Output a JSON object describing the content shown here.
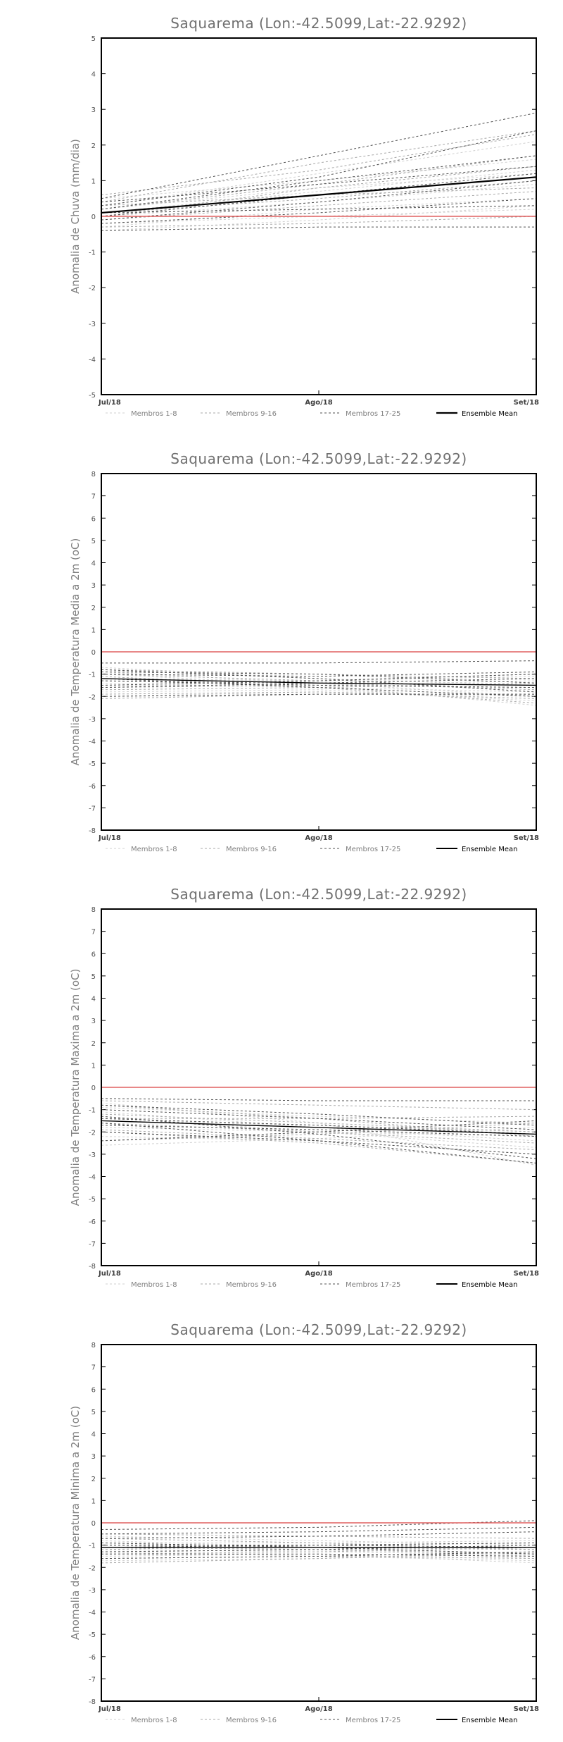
{
  "legend": {
    "items": [
      {
        "label": "Membros 1-8",
        "color": "#d0d0d0",
        "dash": "3,3",
        "width": 1
      },
      {
        "label": "Membros 9-16",
        "color": "#a8a8a8",
        "dash": "3,3",
        "width": 1
      },
      {
        "label": "Membros 17-25",
        "color": "#505050",
        "dash": "3,3",
        "width": 1
      },
      {
        "label": "Ensemble Mean",
        "color": "#000000",
        "dash": "",
        "width": 2
      }
    ]
  },
  "zero_line_color": "#e06060",
  "chart_data": [
    {
      "type": "line",
      "title": "Saquarema (Lon:-42.5099,Lat:-22.9292)",
      "ylabel": "Anomalia de Chuva (mm/dia)",
      "categories": [
        "Jul/18",
        "Ago/18",
        "Set/18"
      ],
      "ylim": [
        -5,
        5
      ],
      "yticks": [
        -5,
        -4,
        -3,
        -2,
        -1,
        0,
        1,
        2,
        3,
        4,
        5
      ],
      "members_1_8": [
        [
          0.3,
          1.2,
          2.1
        ],
        [
          0.1,
          0.7,
          1.3
        ],
        [
          -0.3,
          0.2,
          0.5
        ],
        [
          0.0,
          0.4,
          0.9
        ],
        [
          0.5,
          1.0,
          1.6
        ],
        [
          -0.2,
          0.0,
          0.2
        ],
        [
          0.2,
          0.8,
          1.2
        ],
        [
          -0.4,
          -0.1,
          0.3
        ]
      ],
      "members_9_16": [
        [
          0.4,
          1.5,
          2.4
        ],
        [
          0.2,
          0.9,
          1.7
        ],
        [
          -0.1,
          0.3,
          0.7
        ],
        [
          0.1,
          0.5,
          1.0
        ],
        [
          0.6,
          1.3,
          2.3
        ],
        [
          -0.3,
          -0.2,
          0.0
        ],
        [
          0.3,
          0.6,
          0.8
        ],
        [
          0.0,
          0.8,
          1.4
        ]
      ],
      "members_17_25": [
        [
          0.5,
          1.7,
          2.9
        ],
        [
          0.2,
          1.0,
          1.7
        ],
        [
          -0.1,
          0.4,
          1.0
        ],
        [
          0.1,
          0.2,
          0.3
        ],
        [
          -0.4,
          -0.3,
          -0.3
        ],
        [
          0.3,
          1.1,
          2.4
        ],
        [
          0.0,
          0.6,
          1.2
        ],
        [
          -0.2,
          0.1,
          0.5
        ],
        [
          0.4,
          0.9,
          1.4
        ]
      ],
      "ensemble_mean": [
        0.1,
        0.6,
        1.1
      ]
    },
    {
      "type": "line",
      "title": "Saquarema (Lon:-42.5099,Lat:-22.9292)",
      "ylabel": "Anomalia de Temperatura Media a 2m (oC)",
      "categories": [
        "Jul/18",
        "Ago/18",
        "Set/18"
      ],
      "ylim": [
        -8,
        8
      ],
      "yticks": [
        -8,
        -7,
        -6,
        -5,
        -4,
        -3,
        -2,
        -1,
        0,
        1,
        2,
        3,
        4,
        5,
        6,
        7,
        8
      ],
      "members_1_8": [
        [
          -1.0,
          -1.5,
          -2.4
        ],
        [
          -1.4,
          -1.6,
          -1.8
        ],
        [
          -0.7,
          -1.2,
          -1.5
        ],
        [
          -1.8,
          -1.7,
          -2.2
        ],
        [
          -1.2,
          -1.3,
          -1.1
        ],
        [
          -2.0,
          -1.8,
          -2.0
        ],
        [
          -0.9,
          -1.4,
          -2.0
        ],
        [
          -1.5,
          -1.5,
          -1.3
        ]
      ],
      "members_9_16": [
        [
          -1.1,
          -1.6,
          -2.3
        ],
        [
          -1.6,
          -1.5,
          -1.6
        ],
        [
          -0.8,
          -1.0,
          -1.2
        ],
        [
          -2.1,
          -1.9,
          -1.9
        ],
        [
          -1.3,
          -1.4,
          -1.7
        ],
        [
          -1.7,
          -1.6,
          -1.4
        ],
        [
          -1.0,
          -1.3,
          -1.0
        ],
        [
          -1.9,
          -1.8,
          -2.1
        ]
      ],
      "members_17_25": [
        [
          -0.5,
          -0.5,
          -0.4
        ],
        [
          -1.0,
          -1.1,
          -0.9
        ],
        [
          -1.3,
          -1.5,
          -1.6
        ],
        [
          -1.6,
          -1.4,
          -1.2
        ],
        [
          -0.8,
          -1.2,
          -1.8
        ],
        [
          -2.0,
          -1.9,
          -1.9
        ],
        [
          -1.2,
          -1.6,
          -2.0
        ],
        [
          -1.5,
          -1.3,
          -1.0
        ],
        [
          -0.9,
          -1.0,
          -1.4
        ]
      ],
      "ensemble_mean": [
        -1.2,
        -1.4,
        -1.5
      ]
    },
    {
      "type": "line",
      "title": "Saquarema (Lon:-42.5099,Lat:-22.9292)",
      "ylabel": "Anomalia de Temperatura Maxima a 2m (oC)",
      "categories": [
        "Jul/18",
        "Ago/18",
        "Set/18"
      ],
      "ylim": [
        -8,
        8
      ],
      "yticks": [
        -8,
        -7,
        -6,
        -5,
        -4,
        -3,
        -2,
        -1,
        0,
        1,
        2,
        3,
        4,
        5,
        6,
        7,
        8
      ],
      "members_1_8": [
        [
          -0.7,
          -1.6,
          -3.5
        ],
        [
          -1.3,
          -2.0,
          -2.7
        ],
        [
          -1.8,
          -2.0,
          -2.2
        ],
        [
          -0.9,
          -1.3,
          -1.6
        ],
        [
          -2.2,
          -2.4,
          -3.0
        ],
        [
          -1.5,
          -1.7,
          -2.0
        ],
        [
          -2.6,
          -2.3,
          -1.8
        ],
        [
          -1.1,
          -1.8,
          -2.4
        ]
      ],
      "members_9_16": [
        [
          -0.8,
          -1.4,
          -2.2
        ],
        [
          -1.6,
          -2.0,
          -2.5
        ],
        [
          -2.0,
          -2.5,
          -3.4
        ],
        [
          -1.2,
          -1.6,
          -2.0
        ],
        [
          -2.4,
          -2.1,
          -1.6
        ],
        [
          -1.4,
          -1.4,
          -1.3
        ],
        [
          -0.6,
          -0.8,
          -1.0
        ],
        [
          -1.9,
          -2.3,
          -2.8
        ]
      ],
      "members_17_25": [
        [
          -0.5,
          -0.6,
          -0.6
        ],
        [
          -1.3,
          -2.1,
          -3.2
        ],
        [
          -1.7,
          -1.9,
          -2.2
        ],
        [
          -2.4,
          -2.0,
          -1.5
        ],
        [
          -1.0,
          -1.4,
          -1.9
        ],
        [
          -2.0,
          -2.4,
          -3.0
        ],
        [
          -1.4,
          -1.7,
          -2.1
        ],
        [
          -0.8,
          -1.2,
          -1.7
        ],
        [
          -1.6,
          -2.4,
          -3.4
        ]
      ],
      "ensemble_mean": [
        -1.5,
        -1.8,
        -2.1
      ]
    },
    {
      "type": "line",
      "title": "Saquarema (Lon:-42.5099,Lat:-22.9292)",
      "ylabel": "Anomalia de Temperatura Minima a 2m (oC)",
      "categories": [
        "Jul/18",
        "Ago/18",
        "Set/18"
      ],
      "ylim": [
        -8,
        8
      ],
      "yticks": [
        -8,
        -7,
        -6,
        -5,
        -4,
        -3,
        -2,
        -1,
        0,
        1,
        2,
        3,
        4,
        5,
        6,
        7,
        8
      ],
      "members_1_8": [
        [
          -0.8,
          -1.1,
          -1.5
        ],
        [
          -1.2,
          -1.3,
          -1.4
        ],
        [
          -1.5,
          -1.4,
          -1.8
        ],
        [
          -0.6,
          -0.8,
          -1.0
        ],
        [
          -1.0,
          -1.2,
          -1.6
        ],
        [
          -1.7,
          -1.6,
          -1.4
        ],
        [
          -0.9,
          -0.9,
          -0.8
        ],
        [
          -1.3,
          -1.5,
          -1.7
        ]
      ],
      "members_9_16": [
        [
          -1.0,
          -1.1,
          -1.2
        ],
        [
          -1.4,
          -1.3,
          -1.1
        ],
        [
          -0.7,
          -0.9,
          -1.2
        ],
        [
          -1.6,
          -1.5,
          -1.6
        ],
        [
          -1.1,
          -1.2,
          -1.4
        ],
        [
          -0.5,
          -0.6,
          -0.7
        ],
        [
          -1.8,
          -1.6,
          -1.3
        ],
        [
          -1.2,
          -1.0,
          -0.9
        ]
      ],
      "members_17_25": [
        [
          -0.3,
          -0.2,
          0.1
        ],
        [
          -0.7,
          -0.6,
          -0.4
        ],
        [
          -1.0,
          -1.0,
          -0.9
        ],
        [
          -1.3,
          -1.2,
          -1.0
        ],
        [
          -1.6,
          -1.5,
          -1.3
        ],
        [
          -0.9,
          -1.1,
          -1.4
        ],
        [
          -1.4,
          -1.4,
          -1.5
        ],
        [
          -0.5,
          -0.4,
          -0.2
        ],
        [
          -1.1,
          -1.0,
          -1.1
        ]
      ],
      "ensemble_mean": [
        -1.1,
        -1.1,
        -1.1
      ]
    }
  ]
}
